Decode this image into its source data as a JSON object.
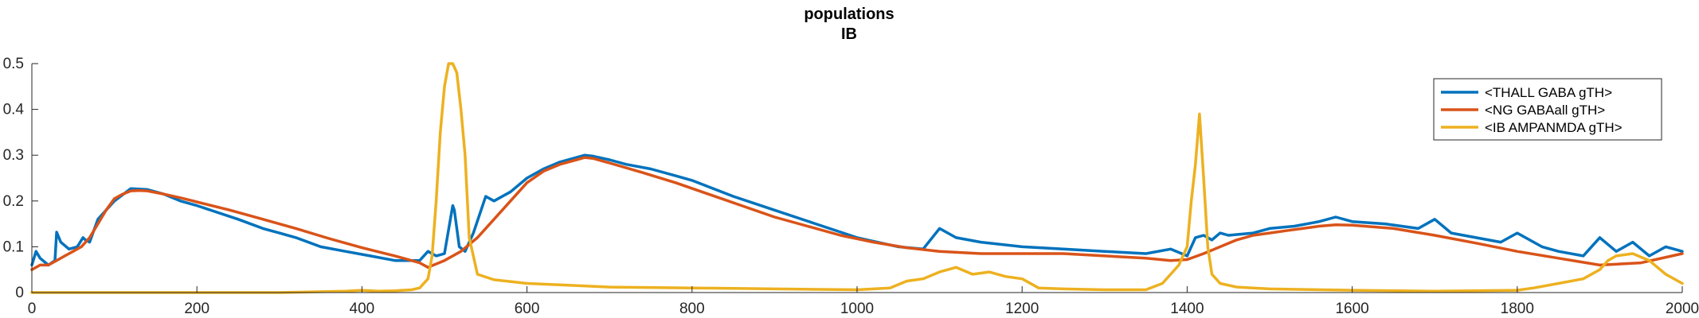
{
  "chart_data": {
    "type": "line",
    "title": "populations",
    "subtitle": "IB",
    "xlabel": "",
    "ylabel": "",
    "xlim": [
      0,
      2000
    ],
    "ylim": [
      0,
      0.5
    ],
    "xticks": [
      0,
      200,
      400,
      600,
      800,
      1000,
      1200,
      1400,
      1600,
      1800,
      2000
    ],
    "yticks": [
      0,
      0.1,
      0.2,
      0.3,
      0.4,
      0.5
    ],
    "xtick_labels": [
      "0",
      "200",
      "400",
      "600",
      "800",
      "1000",
      "1200",
      "1400",
      "1600",
      "1800",
      "2000"
    ],
    "ytick_labels": [
      "0",
      "0.1",
      "0.2",
      "0.3",
      "0.4",
      "0.5"
    ],
    "grid": false,
    "legend_position": "top-right",
    "series": [
      {
        "name": "<THALL GABA gTH>",
        "color": "#0072BD",
        "x": [
          0,
          5,
          10,
          20,
          28,
          30,
          35,
          45,
          55,
          62,
          65,
          70,
          80,
          100,
          120,
          140,
          160,
          180,
          200,
          220,
          250,
          280,
          300,
          320,
          350,
          380,
          410,
          440,
          470,
          480,
          490,
          500,
          510,
          512,
          518,
          525,
          535,
          550,
          560,
          580,
          600,
          620,
          640,
          660,
          670,
          680,
          700,
          720,
          750,
          780,
          800,
          850,
          900,
          950,
          1000,
          1050,
          1080,
          1100,
          1120,
          1150,
          1200,
          1250,
          1300,
          1350,
          1380,
          1400,
          1410,
          1420,
          1430,
          1440,
          1450,
          1480,
          1500,
          1530,
          1560,
          1580,
          1600,
          1640,
          1680,
          1700,
          1720,
          1750,
          1780,
          1800,
          1830,
          1850,
          1880,
          1900,
          1920,
          1940,
          1960,
          1980,
          2000
        ],
        "y": [
          0.06,
          0.09,
          0.075,
          0.06,
          0.07,
          0.132,
          0.11,
          0.095,
          0.1,
          0.12,
          0.115,
          0.11,
          0.16,
          0.2,
          0.227,
          0.225,
          0.215,
          0.2,
          0.19,
          0.178,
          0.16,
          0.14,
          0.13,
          0.12,
          0.1,
          0.09,
          0.08,
          0.07,
          0.07,
          0.09,
          0.08,
          0.085,
          0.19,
          0.18,
          0.1,
          0.09,
          0.13,
          0.21,
          0.2,
          0.22,
          0.25,
          0.27,
          0.285,
          0.295,
          0.3,
          0.298,
          0.29,
          0.28,
          0.27,
          0.255,
          0.245,
          0.21,
          0.18,
          0.15,
          0.12,
          0.1,
          0.095,
          0.14,
          0.12,
          0.11,
          0.1,
          0.095,
          0.09,
          0.085,
          0.095,
          0.08,
          0.12,
          0.125,
          0.115,
          0.13,
          0.125,
          0.13,
          0.14,
          0.145,
          0.155,
          0.165,
          0.155,
          0.15,
          0.14,
          0.16,
          0.13,
          0.12,
          0.11,
          0.13,
          0.1,
          0.09,
          0.08,
          0.12,
          0.09,
          0.11,
          0.08,
          0.1,
          0.09
        ]
      },
      {
        "name": "<NG GABAall gTH>",
        "color": "#D95319",
        "x": [
          0,
          10,
          20,
          30,
          40,
          50,
          60,
          70,
          80,
          90,
          100,
          110,
          120,
          130,
          140,
          160,
          180,
          200,
          240,
          280,
          320,
          360,
          400,
          440,
          470,
          480,
          500,
          520,
          540,
          560,
          580,
          600,
          620,
          640,
          660,
          670,
          680,
          700,
          740,
          780,
          820,
          860,
          900,
          940,
          980,
          1020,
          1060,
          1100,
          1150,
          1200,
          1250,
          1300,
          1350,
          1380,
          1400,
          1420,
          1440,
          1460,
          1480,
          1500,
          1520,
          1540,
          1560,
          1580,
          1600,
          1650,
          1700,
          1750,
          1800,
          1850,
          1900,
          1950,
          2000
        ],
        "y": [
          0.05,
          0.06,
          0.06,
          0.07,
          0.08,
          0.09,
          0.1,
          0.12,
          0.15,
          0.18,
          0.205,
          0.215,
          0.222,
          0.223,
          0.222,
          0.215,
          0.207,
          0.198,
          0.18,
          0.16,
          0.14,
          0.118,
          0.098,
          0.08,
          0.065,
          0.055,
          0.07,
          0.09,
          0.12,
          0.16,
          0.2,
          0.24,
          0.265,
          0.28,
          0.29,
          0.295,
          0.293,
          0.283,
          0.262,
          0.24,
          0.215,
          0.19,
          0.165,
          0.145,
          0.125,
          0.11,
          0.098,
          0.09,
          0.085,
          0.085,
          0.085,
          0.08,
          0.075,
          0.07,
          0.072,
          0.085,
          0.1,
          0.115,
          0.125,
          0.13,
          0.135,
          0.14,
          0.145,
          0.148,
          0.147,
          0.14,
          0.125,
          0.108,
          0.09,
          0.075,
          0.06,
          0.065,
          0.085
        ]
      },
      {
        "name": "<IB AMPANMDA gTH>",
        "color": "#EDB120",
        "x": [
          0,
          50,
          100,
          200,
          300,
          380,
          400,
          420,
          440,
          460,
          470,
          480,
          485,
          490,
          495,
          500,
          505,
          510,
          515,
          520,
          525,
          530,
          540,
          560,
          600,
          650,
          700,
          800,
          900,
          1000,
          1040,
          1060,
          1080,
          1100,
          1120,
          1140,
          1160,
          1180,
          1200,
          1220,
          1250,
          1300,
          1350,
          1370,
          1380,
          1390,
          1400,
          1405,
          1410,
          1415,
          1420,
          1425,
          1430,
          1440,
          1460,
          1500,
          1600,
          1700,
          1800,
          1820,
          1850,
          1880,
          1900,
          1910,
          1920,
          1940,
          1960,
          1980,
          2000
        ],
        "y": [
          0,
          0,
          0,
          0,
          0,
          0.003,
          0.005,
          0.003,
          0.004,
          0.006,
          0.01,
          0.03,
          0.08,
          0.2,
          0.35,
          0.45,
          0.5,
          0.5,
          0.48,
          0.4,
          0.3,
          0.12,
          0.04,
          0.028,
          0.02,
          0.016,
          0.012,
          0.01,
          0.008,
          0.006,
          0.01,
          0.025,
          0.03,
          0.045,
          0.055,
          0.04,
          0.045,
          0.035,
          0.03,
          0.01,
          0.008,
          0.006,
          0.006,
          0.02,
          0.04,
          0.06,
          0.1,
          0.2,
          0.28,
          0.39,
          0.25,
          0.1,
          0.04,
          0.02,
          0.012,
          0.008,
          0.005,
          0.003,
          0.005,
          0.01,
          0.02,
          0.03,
          0.05,
          0.07,
          0.08,
          0.085,
          0.07,
          0.04,
          0.02
        ]
      }
    ]
  }
}
